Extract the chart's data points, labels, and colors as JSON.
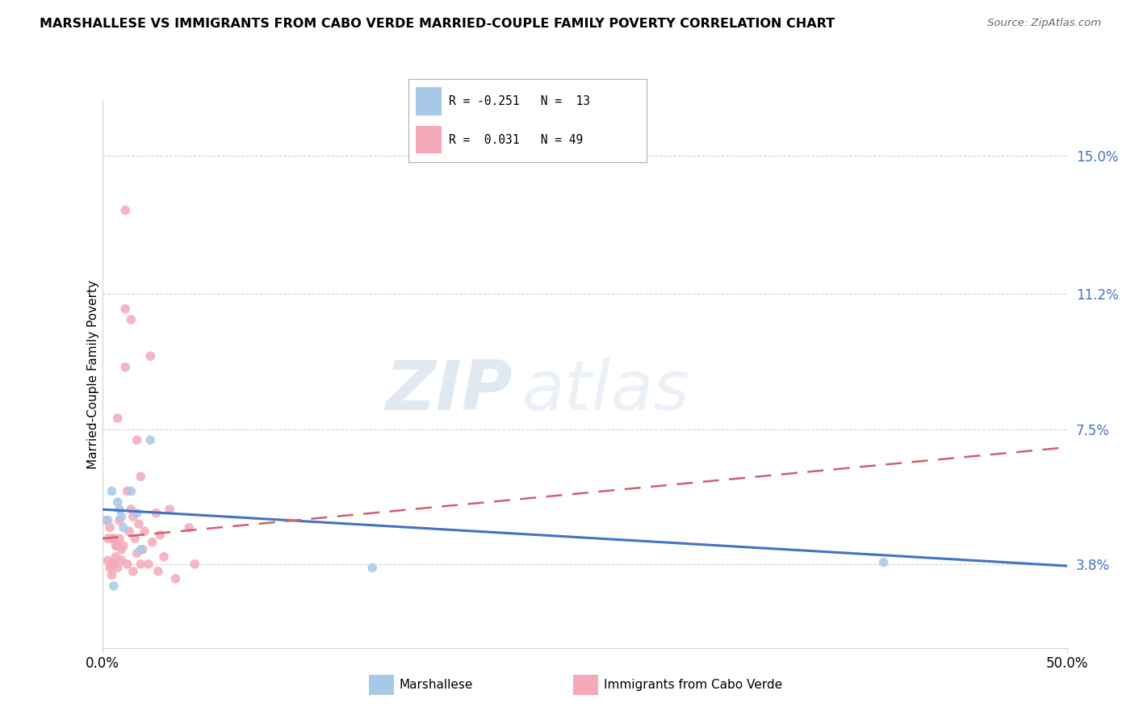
{
  "title": "MARSHALLESE VS IMMIGRANTS FROM CABO VERDE MARRIED-COUPLE FAMILY POVERTY CORRELATION CHART",
  "source": "Source: ZipAtlas.com",
  "ylabel": "Married-Couple Family Poverty",
  "yticks": [
    3.8,
    7.5,
    11.2,
    15.0
  ],
  "ytick_labels": [
    "3.8%",
    "7.5%",
    "11.2%",
    "15.0%"
  ],
  "xlim": [
    0.0,
    50.0
  ],
  "ylim": [
    1.5,
    16.5
  ],
  "legend_blue_r": "R = -0.251",
  "legend_blue_n": "N =  13",
  "legend_pink_r": "R =  0.031",
  "legend_pink_n": "N = 49",
  "watermark_zip": "ZIP",
  "watermark_atlas": "atlas",
  "blue_scatter_x": [
    0.3,
    0.5,
    0.6,
    0.8,
    0.9,
    1.0,
    1.1,
    1.5,
    1.8,
    2.0,
    2.5,
    14.0,
    40.5
  ],
  "blue_scatter_y": [
    5.0,
    5.8,
    3.2,
    5.5,
    5.3,
    5.1,
    4.8,
    5.8,
    5.2,
    4.2,
    7.2,
    3.7,
    3.85
  ],
  "pink_scatter_x": [
    0.2,
    0.3,
    0.3,
    0.4,
    0.4,
    0.5,
    0.5,
    0.5,
    0.6,
    0.6,
    0.7,
    0.7,
    0.8,
    0.8,
    0.8,
    0.9,
    0.9,
    1.0,
    1.0,
    1.1,
    1.2,
    1.2,
    1.3,
    1.3,
    1.4,
    1.5,
    1.5,
    1.6,
    1.6,
    1.7,
    1.8,
    1.8,
    1.9,
    2.0,
    2.0,
    2.1,
    2.2,
    2.4,
    2.5,
    2.6,
    2.8,
    2.9,
    3.0,
    3.2,
    3.5,
    3.8,
    4.5,
    4.8,
    1.2
  ],
  "pink_scatter_y": [
    5.0,
    4.5,
    3.9,
    4.8,
    3.7,
    4.5,
    3.8,
    3.5,
    4.5,
    3.8,
    4.3,
    4.0,
    7.8,
    4.3,
    3.7,
    5.0,
    4.5,
    4.2,
    3.9,
    4.3,
    13.5,
    9.2,
    5.8,
    3.8,
    4.7,
    10.5,
    5.3,
    5.1,
    3.6,
    4.5,
    7.2,
    4.1,
    4.9,
    6.2,
    3.8,
    4.2,
    4.7,
    3.8,
    9.5,
    4.4,
    5.2,
    3.6,
    4.6,
    4.0,
    5.3,
    3.4,
    4.8,
    3.8,
    10.8
  ],
  "blue_line_x": [
    0.0,
    50.0
  ],
  "blue_line_y": [
    5.3,
    3.75
  ],
  "pink_line_x": [
    0.0,
    50.0
  ],
  "pink_line_y": [
    4.5,
    7.0
  ],
  "blue_color": "#a8c8e8",
  "pink_color": "#f4a8b8",
  "blue_line_color": "#4472c4",
  "pink_line_color": "#d06070",
  "dot_size": 70,
  "dot_alpha": 0.85
}
